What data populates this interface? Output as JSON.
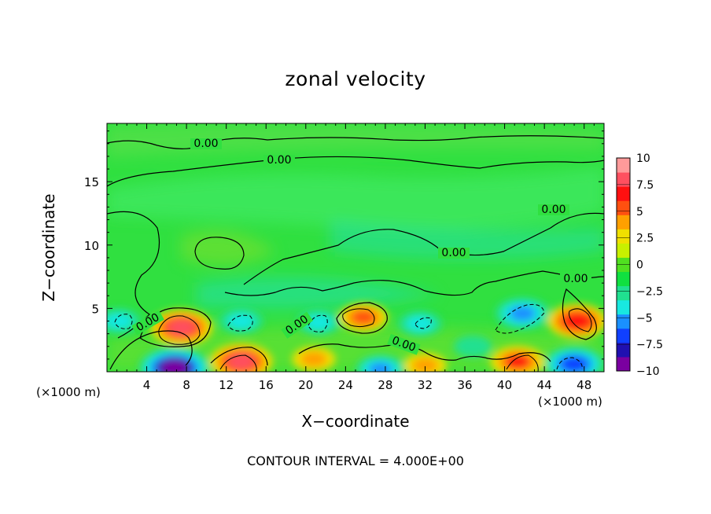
{
  "chart_data": {
    "type": "heatmap",
    "title": "zonal velocity",
    "xlabel": "X−coordinate",
    "ylabel": "Z−coordinate",
    "x_unit": "(×1000 m)",
    "xlim": [
      0,
      50
    ],
    "ylim": [
      0,
      19.6
    ],
    "x_ticks": [
      4,
      8,
      12,
      16,
      20,
      24,
      28,
      32,
      36,
      40,
      44,
      48
    ],
    "y_ticks": [
      5,
      10,
      15
    ],
    "colorbar": {
      "ticks": [
        "10",
        "7.5",
        "5",
        "2.5",
        "0",
        "−2.5",
        "−5",
        "−7.5",
        "−10"
      ],
      "range": [
        -10,
        10
      ],
      "colors": [
        "#7a00a0",
        "#2010b0",
        "#1040ff",
        "#1a90ff",
        "#18e8e0",
        "#20e090",
        "#10e040",
        "#50e020",
        "#c8f000",
        "#f0e000",
        "#ffa000",
        "#ff5010",
        "#ff1010",
        "#ff5060",
        "#ff9a9a"
      ]
    },
    "contour_interval": "CONTOUR INTERVAL = 4.000E+00",
    "contour_labels": [
      "0.00",
      "0.00",
      "0.00",
      "0.00",
      "0.00",
      "0.00",
      "0.00",
      "0.00"
    ],
    "features": [
      {
        "name": "positive-core",
        "x": 7.5,
        "z": 3.5,
        "value": 7.5
      },
      {
        "name": "positive-core",
        "x": 13.5,
        "z": 0.8,
        "value": 7.5
      },
      {
        "name": "positive-core",
        "x": 25.8,
        "z": 4.3,
        "value": 5
      },
      {
        "name": "positive-core",
        "x": 20.8,
        "z": 1.0,
        "value": 4
      },
      {
        "name": "positive-core",
        "x": 41.3,
        "z": 0.8,
        "value": 6
      },
      {
        "name": "positive-core",
        "x": 47.3,
        "z": 4.0,
        "value": 7
      },
      {
        "name": "positive-core",
        "x": 32.0,
        "z": 0.5,
        "value": 4
      },
      {
        "name": "negative-core",
        "x": 6.8,
        "z": 0.3,
        "value": -9
      },
      {
        "name": "negative-core",
        "x": 1.2,
        "z": 4.0,
        "value": -4
      },
      {
        "name": "negative-core",
        "x": 13.5,
        "z": 4.0,
        "value": -4
      },
      {
        "name": "negative-core",
        "x": 21.3,
        "z": 3.9,
        "value": -4
      },
      {
        "name": "negative-core",
        "x": 31.5,
        "z": 3.8,
        "value": -4
      },
      {
        "name": "negative-core",
        "x": 41.8,
        "z": 4.6,
        "value": -6
      },
      {
        "name": "negative-core",
        "x": 47.0,
        "z": 0.6,
        "value": -7
      },
      {
        "name": "negative-core",
        "x": 27.5,
        "z": 0.2,
        "value": -5
      },
      {
        "name": "negative-core",
        "x": 36.8,
        "z": 2.0,
        "value": -3
      }
    ]
  }
}
